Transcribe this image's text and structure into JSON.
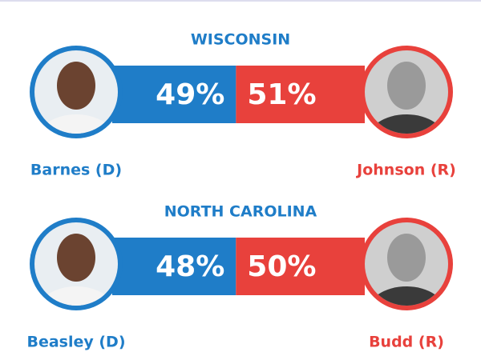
{
  "chart_data": [
    {
      "type": "bar",
      "title": "WISCONSIN",
      "categories": [
        "Barnes (D)",
        "Johnson (R)"
      ],
      "values": [
        49,
        51
      ],
      "value_labels": [
        "49%",
        "51%"
      ],
      "colors": [
        "#1f7dc8",
        "#e8413c"
      ]
    },
    {
      "type": "bar",
      "title": "NORTH CAROLINA",
      "categories": [
        "Beasley (D)",
        "Budd (R)"
      ],
      "values": [
        48,
        50
      ],
      "value_labels": [
        "48%",
        "50%"
      ],
      "colors": [
        "#1f7dc8",
        "#e8413c"
      ]
    }
  ]
}
